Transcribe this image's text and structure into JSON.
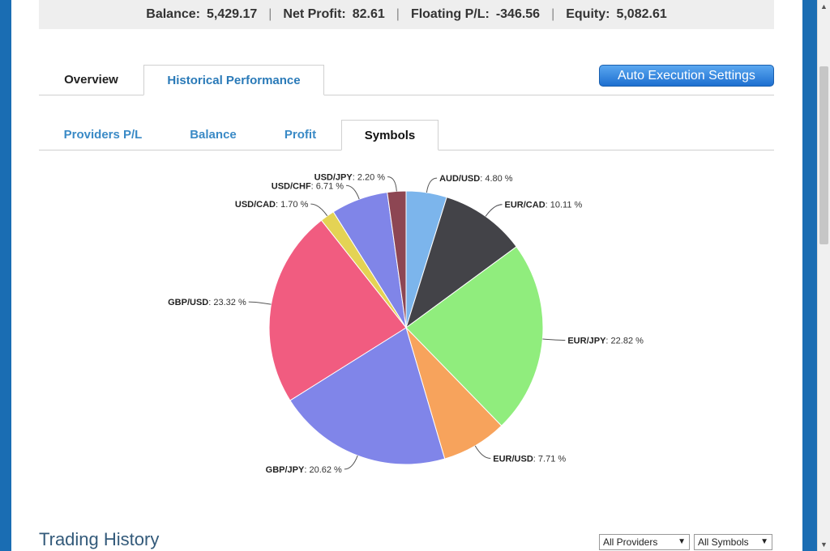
{
  "summary": {
    "balance_label": "Balance:",
    "balance_value": "5,429.17",
    "net_profit_label": "Net Profit:",
    "net_profit_value": "82.61",
    "floating_label": "Floating P/L:",
    "floating_value": "-346.56",
    "equity_label": "Equity:",
    "equity_value": "5,082.61",
    "separator": "|"
  },
  "main_tabs": [
    {
      "label": "Overview"
    },
    {
      "label": "Historical Performance"
    }
  ],
  "auto_execution_button": "Auto Execution Settings",
  "sub_tabs": [
    {
      "label": "Providers P/L"
    },
    {
      "label": "Balance"
    },
    {
      "label": "Profit"
    },
    {
      "label": "Symbols"
    }
  ],
  "chart_data": {
    "type": "pie",
    "slices": [
      {
        "name": "AUD/USD",
        "value": 4.8,
        "label": ": 4.80 %",
        "color": "#7cb5ec"
      },
      {
        "name": "EUR/CAD",
        "value": 10.11,
        "label": ": 10.11 %",
        "color": "#434348"
      },
      {
        "name": "EUR/JPY",
        "value": 22.82,
        "label": ": 22.82 %",
        "color": "#90ed7d"
      },
      {
        "name": "EUR/USD",
        "value": 7.71,
        "label": ": 7.71 %",
        "color": "#f7a35c"
      },
      {
        "name": "GBP/JPY",
        "value": 20.62,
        "label": ": 20.62 %",
        "color": "#8085e9"
      },
      {
        "name": "GBP/USD",
        "value": 23.32,
        "label": ": 23.32 %",
        "color": "#f15c80"
      },
      {
        "name": "USD/CAD",
        "value": 1.7,
        "label": ": 1.70 %",
        "color": "#e4d354"
      },
      {
        "name": "USD/CHF",
        "value": 6.71,
        "label": ": 6.71 %",
        "color": "#8085e8"
      },
      {
        "name": "USD/JPY",
        "value": 2.2,
        "label": ": 2.20 %",
        "color": "#8d4653"
      }
    ]
  },
  "trading_history": {
    "title": "Trading History",
    "providers_select": "All Providers",
    "symbols_select": "All Symbols"
  },
  "icons": {
    "dropdown": "▼",
    "scroll_up": "▲",
    "scroll_down": "▼"
  }
}
